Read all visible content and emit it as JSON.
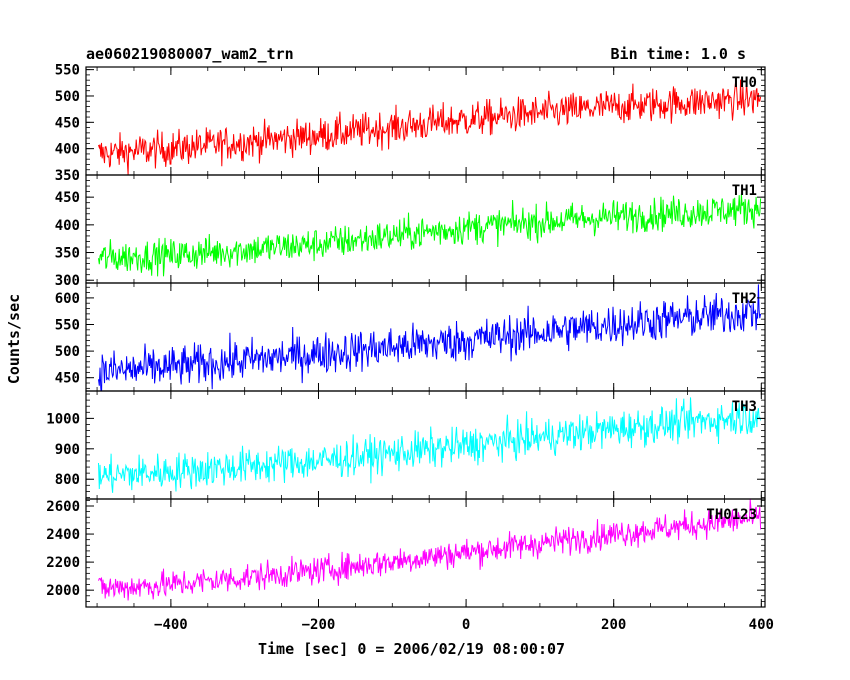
{
  "header": {
    "title_left": "ae060219080007_wam2_trn",
    "title_right": "Bin time: 1.0 s"
  },
  "axes": {
    "xlabel": "Time [sec] 0 = 2006/02/19 08:00:07",
    "ylabel": "Counts/sec"
  },
  "chart_data": {
    "type": "line",
    "shared_x": {
      "xlim": [
        -515,
        405
      ],
      "ticks": [
        -400,
        -200,
        0,
        200,
        400
      ],
      "tick_labels": [
        "−400",
        "−200",
        "0",
        "200",
        "400"
      ],
      "bin_time_s": 1.0
    },
    "panels": [
      {
        "label": "TH0",
        "color": "#ff0000",
        "ylim": [
          350,
          555
        ],
        "yticks": [
          350,
          400,
          450,
          500,
          550
        ],
        "trend": {
          "x": [
            -500,
            -400,
            -200,
            0,
            200,
            400
          ],
          "y": [
            390,
            400,
            425,
            455,
            480,
            495
          ]
        },
        "noise_amplitude": 30
      },
      {
        "label": "TH1",
        "color": "#00ff00",
        "ylim": [
          295,
          490
        ],
        "yticks": [
          300,
          350,
          400,
          450
        ],
        "trend": {
          "x": [
            -500,
            -400,
            -200,
            0,
            200,
            400
          ],
          "y": [
            340,
            345,
            365,
            395,
            415,
            430
          ]
        },
        "noise_amplitude": 27
      },
      {
        "label": "TH2",
        "color": "#0000ff",
        "ylim": [
          425,
          628
        ],
        "yticks": [
          450,
          500,
          550,
          600
        ],
        "trend": {
          "x": [
            -500,
            -400,
            -200,
            0,
            200,
            400
          ],
          "y": [
            460,
            470,
            495,
            520,
            550,
            575
          ]
        },
        "noise_amplitude": 35
      },
      {
        "label": "TH3",
        "color": "#00ffff",
        "ylim": [
          735,
          1090
        ],
        "yticks": [
          800,
          900,
          1000
        ],
        "trend": {
          "x": [
            -500,
            -400,
            -200,
            0,
            200,
            400
          ],
          "y": [
            810,
            825,
            860,
            910,
            965,
            1010
          ]
        },
        "noise_amplitude": 55
      },
      {
        "label": "TH0123",
        "color": "#ff00ff",
        "ylim": [
          1880,
          2650
        ],
        "yticks": [
          2000,
          2200,
          2400,
          2600
        ],
        "trend": {
          "x": [
            -500,
            -400,
            -200,
            0,
            200,
            400
          ],
          "y": [
            2010,
            2040,
            2140,
            2270,
            2400,
            2520
          ]
        },
        "noise_amplitude": 90
      }
    ]
  }
}
